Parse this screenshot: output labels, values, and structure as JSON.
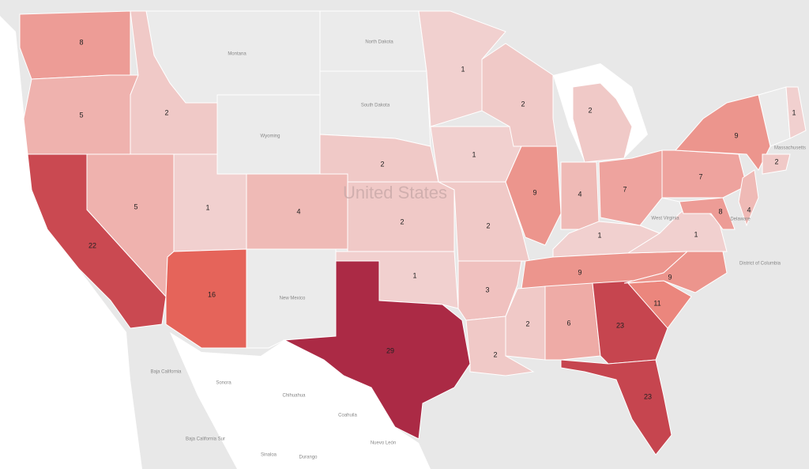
{
  "map": {
    "watermark": "United States",
    "color_scale": [
      "#f1d0cf",
      "#e9685c",
      "#ab2a45"
    ],
    "regions": [
      {
        "value": 8
      },
      {
        "value": 5
      },
      {
        "value": 2
      },
      {
        "value": 22
      },
      {
        "value": 5
      },
      {
        "value": 1
      },
      {
        "value": 4
      },
      {
        "value": 16
      },
      {
        "value": 2
      },
      {
        "value": 2
      },
      {
        "value": 1
      },
      {
        "value": 29
      },
      {
        "value": 1
      },
      {
        "value": 1
      },
      {
        "value": 2
      },
      {
        "value": 3
      },
      {
        "value": 2
      },
      {
        "value": 2
      },
      {
        "value": 9
      },
      {
        "value": 4
      },
      {
        "value": 2
      },
      {
        "value": 7
      },
      {
        "value": 1
      },
      {
        "value": 9
      },
      {
        "value": 2
      },
      {
        "value": 6
      },
      {
        "value": 23
      },
      {
        "value": 23
      },
      {
        "value": 11
      },
      {
        "value": 9
      },
      {
        "value": 1
      },
      {
        "value": 7
      },
      {
        "value": 9
      },
      {
        "value": 4
      },
      {
        "value": 8
      },
      {
        "value": 2
      },
      {
        "value": 1
      }
    ],
    "place_labels": [
      "Montana",
      "North Dakota",
      "South Dakota",
      "Wyoming",
      "New Mexico",
      "West Virginia",
      "Massachusetts",
      "District of Columbia",
      "Delaware",
      "Baja California",
      "Sonora",
      "Chihuahua",
      "Coahuila",
      "Nuevo León",
      "Durango",
      "Sinaloa",
      "Baja California Sur"
    ]
  }
}
